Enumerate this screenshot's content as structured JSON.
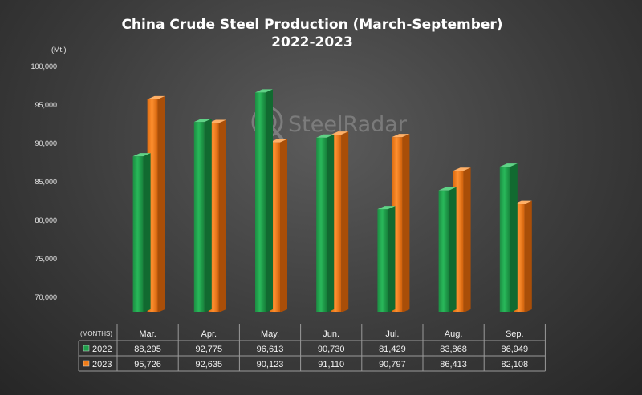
{
  "watermark": "SteelRadar",
  "chart_data": {
    "type": "bar",
    "title": "China Crude Steel Production (March-September)",
    "subtitle": "2022-2023",
    "ylabel": "(Mt.)",
    "xlabel": "(MONTHS)",
    "ylim": [
      68000,
      100000
    ],
    "yticks": [
      70000,
      75000,
      80000,
      85000,
      90000,
      95000,
      100000
    ],
    "ytick_labels": [
      "70,000",
      "75,000",
      "80,000",
      "85,000",
      "90,000",
      "95,000",
      "100,000"
    ],
    "categories": [
      "Mar.",
      "Apr.",
      "May.",
      "Jun.",
      "Jul.",
      "Aug.",
      "Sep."
    ],
    "series": [
      {
        "name": "2022",
        "color": "#1f9e4a",
        "values": [
          88295,
          92775,
          96613,
          90730,
          81429,
          83868,
          86949
        ],
        "labels": [
          "88,295",
          "92,775",
          "96,613",
          "90,730",
          "81,429",
          "83,868",
          "86,949"
        ]
      },
      {
        "name": "2023",
        "color": "#f07c17",
        "values": [
          95726,
          92635,
          90123,
          91110,
          90797,
          86413,
          82108
        ],
        "labels": [
          "95,726",
          "92,635",
          "90,123",
          "91,110",
          "90,797",
          "86,413",
          "82,108"
        ]
      }
    ],
    "grid": false,
    "legend": "table-below"
  }
}
